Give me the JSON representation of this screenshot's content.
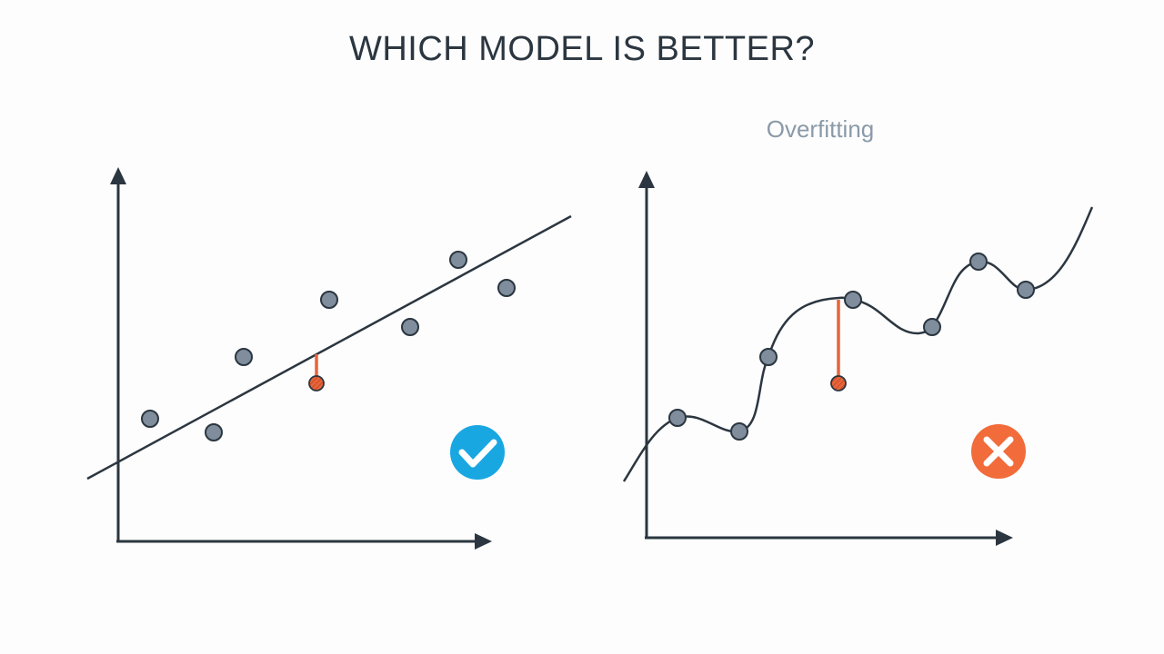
{
  "title": "WHICH MODEL IS BETTER?",
  "right_panel": {
    "subtitle": "Overfitting"
  },
  "colors": {
    "axis": "#2b3640",
    "point_fill": "#7f8d9c",
    "test_point": "#e8643a",
    "error_line": "#e8643a",
    "check_badge": "#19a7e2",
    "cross_badge": "#f26b3a"
  },
  "icons": {
    "left_badge": "checkmark-icon",
    "right_badge": "cross-icon"
  }
}
